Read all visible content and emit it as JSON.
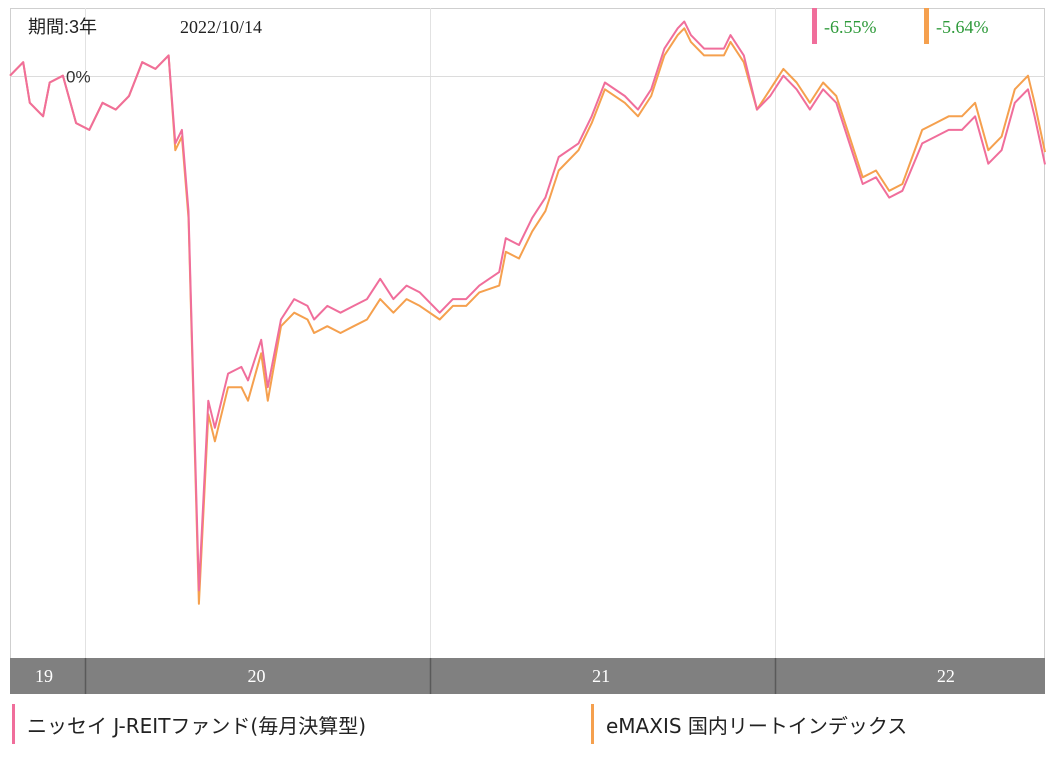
{
  "header": {
    "period_label": "期間:3年",
    "date": "2022/10/14"
  },
  "chart_data": {
    "type": "line",
    "baseline_label": "0%",
    "x_tick_labels": [
      "19",
      "20",
      "21",
      "22"
    ],
    "x_range": [
      "2019-10-14",
      "2022-10-14"
    ],
    "x_tick_dates": [
      "2019-01-01",
      "2020-01-01",
      "2021-01-01",
      "2022-01-01"
    ],
    "x_tick_label_dates": [
      "2019-07-01",
      "2020-07-01",
      "2021-07-01",
      "2022-07-01"
    ],
    "ylim": [
      -43,
      5
    ],
    "grid": true,
    "series": [
      {
        "name": "ニッセイ J-REITファンド(毎月決算型)",
        "color": "#f06e9b",
        "last_value_label": "-6.55%",
        "points": [
          [
            "2019-10-14",
            0.0
          ],
          [
            "2019-10-28",
            1.0
          ],
          [
            "2019-11-04",
            -2.0
          ],
          [
            "2019-11-18",
            -3.0
          ],
          [
            "2019-11-25",
            -0.5
          ],
          [
            "2019-12-09",
            0.0
          ],
          [
            "2019-12-23",
            -3.5
          ],
          [
            "2020-01-06",
            -4.0
          ],
          [
            "2020-01-20",
            -2.0
          ],
          [
            "2020-02-03",
            -2.5
          ],
          [
            "2020-02-17",
            -1.5
          ],
          [
            "2020-03-02",
            1.0
          ],
          [
            "2020-03-16",
            0.5
          ],
          [
            "2020-03-30",
            1.5
          ],
          [
            "2020-04-06",
            -5.0
          ],
          [
            "2020-04-13",
            -4.0
          ],
          [
            "2020-04-20",
            -10.0
          ],
          [
            "2020-05-01",
            -38.0
          ],
          [
            "2020-05-11",
            -24.0
          ],
          [
            "2020-05-18",
            -26.0
          ],
          [
            "2020-06-01",
            -22.0
          ],
          [
            "2020-06-15",
            -21.5
          ],
          [
            "2020-06-22",
            -22.5
          ],
          [
            "2020-07-06",
            -19.5
          ],
          [
            "2020-07-13",
            -23.0
          ],
          [
            "2020-07-27",
            -18.0
          ],
          [
            "2020-08-10",
            -16.5
          ],
          [
            "2020-08-24",
            -17.0
          ],
          [
            "2020-08-31",
            -18.0
          ],
          [
            "2020-09-14",
            -17.0
          ],
          [
            "2020-09-28",
            -17.5
          ],
          [
            "2020-10-12",
            -17.0
          ],
          [
            "2020-10-26",
            -16.5
          ],
          [
            "2020-11-09",
            -15.0
          ],
          [
            "2020-11-23",
            -16.5
          ],
          [
            "2020-12-07",
            -15.5
          ],
          [
            "2020-12-21",
            -16.0
          ],
          [
            "2021-01-11",
            -17.5
          ],
          [
            "2021-01-25",
            -16.5
          ],
          [
            "2021-02-08",
            -16.5
          ],
          [
            "2021-02-22",
            -15.5
          ],
          [
            "2021-03-15",
            -14.5
          ],
          [
            "2021-03-22",
            -12.0
          ],
          [
            "2021-04-05",
            -12.5
          ],
          [
            "2021-04-19",
            -10.5
          ],
          [
            "2021-05-03",
            -9.0
          ],
          [
            "2021-05-17",
            -6.0
          ],
          [
            "2021-06-07",
            -5.0
          ],
          [
            "2021-06-21",
            -3.0
          ],
          [
            "2021-07-05",
            -0.5
          ],
          [
            "2021-07-26",
            -1.5
          ],
          [
            "2021-08-09",
            -2.5
          ],
          [
            "2021-08-23",
            -1.0
          ],
          [
            "2021-09-06",
            2.0
          ],
          [
            "2021-09-20",
            3.5
          ],
          [
            "2021-09-27",
            4.0
          ],
          [
            "2021-10-04",
            3.0
          ],
          [
            "2021-10-18",
            2.0
          ],
          [
            "2021-11-08",
            2.0
          ],
          [
            "2021-11-15",
            3.0
          ],
          [
            "2021-11-29",
            1.5
          ],
          [
            "2021-12-13",
            -2.5
          ],
          [
            "2021-12-27",
            -1.5
          ],
          [
            "2022-01-10",
            0.0
          ],
          [
            "2022-01-24",
            -1.0
          ],
          [
            "2022-02-07",
            -2.5
          ],
          [
            "2022-02-21",
            -1.0
          ],
          [
            "2022-03-07",
            -2.0
          ],
          [
            "2022-03-21",
            -5.0
          ],
          [
            "2022-04-04",
            -8.0
          ],
          [
            "2022-04-18",
            -7.5
          ],
          [
            "2022-05-02",
            -9.0
          ],
          [
            "2022-05-16",
            -8.5
          ],
          [
            "2022-06-06",
            -5.0
          ],
          [
            "2022-06-20",
            -4.5
          ],
          [
            "2022-07-04",
            -4.0
          ],
          [
            "2022-07-18",
            -4.0
          ],
          [
            "2022-08-01",
            -3.0
          ],
          [
            "2022-08-15",
            -6.5
          ],
          [
            "2022-08-29",
            -5.5
          ],
          [
            "2022-09-12",
            -2.0
          ],
          [
            "2022-09-26",
            -1.0
          ],
          [
            "2022-10-03",
            -3.0
          ],
          [
            "2022-10-14",
            -6.55
          ]
        ]
      },
      {
        "name": "eMAXIS 国内リートインデックス",
        "color": "#f5a04e",
        "last_value_label": "-5.64%",
        "points": [
          [
            "2019-10-14",
            0.0
          ],
          [
            "2019-10-28",
            1.0
          ],
          [
            "2019-11-04",
            -2.0
          ],
          [
            "2019-11-18",
            -3.0
          ],
          [
            "2019-11-25",
            -0.5
          ],
          [
            "2019-12-09",
            0.0
          ],
          [
            "2019-12-23",
            -3.5
          ],
          [
            "2020-01-06",
            -4.0
          ],
          [
            "2020-01-20",
            -2.0
          ],
          [
            "2020-02-03",
            -2.5
          ],
          [
            "2020-02-17",
            -1.5
          ],
          [
            "2020-03-02",
            1.0
          ],
          [
            "2020-03-16",
            0.5
          ],
          [
            "2020-03-30",
            1.5
          ],
          [
            "2020-04-06",
            -5.5
          ],
          [
            "2020-04-13",
            -4.5
          ],
          [
            "2020-04-20",
            -10.5
          ],
          [
            "2020-05-01",
            -39.0
          ],
          [
            "2020-05-11",
            -25.0
          ],
          [
            "2020-05-18",
            -27.0
          ],
          [
            "2020-06-01",
            -23.0
          ],
          [
            "2020-06-15",
            -23.0
          ],
          [
            "2020-06-22",
            -24.0
          ],
          [
            "2020-07-06",
            -20.5
          ],
          [
            "2020-07-13",
            -24.0
          ],
          [
            "2020-07-27",
            -18.5
          ],
          [
            "2020-08-10",
            -17.5
          ],
          [
            "2020-08-24",
            -18.0
          ],
          [
            "2020-08-31",
            -19.0
          ],
          [
            "2020-09-14",
            -18.5
          ],
          [
            "2020-09-28",
            -19.0
          ],
          [
            "2020-10-12",
            -18.5
          ],
          [
            "2020-10-26",
            -18.0
          ],
          [
            "2020-11-09",
            -16.5
          ],
          [
            "2020-11-23",
            -17.5
          ],
          [
            "2020-12-07",
            -16.5
          ],
          [
            "2020-12-21",
            -17.0
          ],
          [
            "2021-01-11",
            -18.0
          ],
          [
            "2021-01-25",
            -17.0
          ],
          [
            "2021-02-08",
            -17.0
          ],
          [
            "2021-02-22",
            -16.0
          ],
          [
            "2021-03-15",
            -15.5
          ],
          [
            "2021-03-22",
            -13.0
          ],
          [
            "2021-04-05",
            -13.5
          ],
          [
            "2021-04-19",
            -11.5
          ],
          [
            "2021-05-03",
            -10.0
          ],
          [
            "2021-05-17",
            -7.0
          ],
          [
            "2021-06-07",
            -5.5
          ],
          [
            "2021-06-21",
            -3.5
          ],
          [
            "2021-07-05",
            -1.0
          ],
          [
            "2021-07-26",
            -2.0
          ],
          [
            "2021-08-09",
            -3.0
          ],
          [
            "2021-08-23",
            -1.5
          ],
          [
            "2021-09-06",
            1.5
          ],
          [
            "2021-09-20",
            3.0
          ],
          [
            "2021-09-27",
            3.5
          ],
          [
            "2021-10-04",
            2.5
          ],
          [
            "2021-10-18",
            1.5
          ],
          [
            "2021-11-08",
            1.5
          ],
          [
            "2021-11-15",
            2.5
          ],
          [
            "2021-11-29",
            1.0
          ],
          [
            "2021-12-13",
            -2.5
          ],
          [
            "2021-12-27",
            -1.0
          ],
          [
            "2022-01-10",
            0.5
          ],
          [
            "2022-01-24",
            -0.5
          ],
          [
            "2022-02-07",
            -2.0
          ],
          [
            "2022-02-21",
            -0.5
          ],
          [
            "2022-03-07",
            -1.5
          ],
          [
            "2022-03-21",
            -4.5
          ],
          [
            "2022-04-04",
            -7.5
          ],
          [
            "2022-04-18",
            -7.0
          ],
          [
            "2022-05-02",
            -8.5
          ],
          [
            "2022-05-16",
            -8.0
          ],
          [
            "2022-06-06",
            -4.0
          ],
          [
            "2022-06-20",
            -3.5
          ],
          [
            "2022-07-04",
            -3.0
          ],
          [
            "2022-07-18",
            -3.0
          ],
          [
            "2022-08-01",
            -2.0
          ],
          [
            "2022-08-15",
            -5.5
          ],
          [
            "2022-08-29",
            -4.5
          ],
          [
            "2022-09-12",
            -1.0
          ],
          [
            "2022-09-26",
            0.0
          ],
          [
            "2022-10-03",
            -2.0
          ],
          [
            "2022-10-14",
            -5.64
          ]
        ]
      }
    ]
  }
}
